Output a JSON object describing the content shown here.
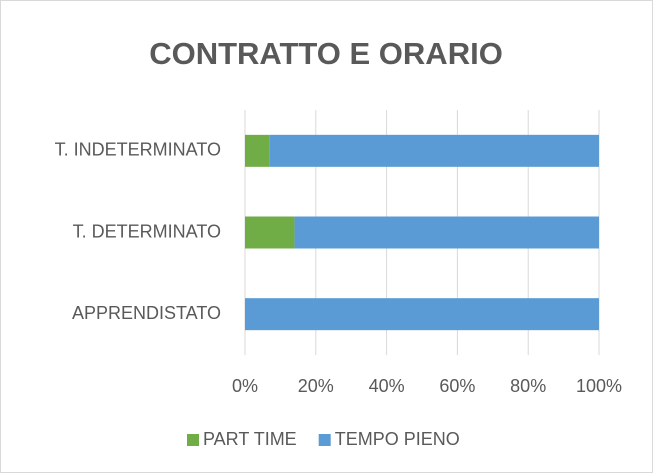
{
  "chart_data": {
    "type": "stacked_bar_horizontal",
    "title": "CONTRATTO E ORARIO",
    "categories": [
      "T. INDETERMINATO",
      "T. DETERMINATO",
      "APPRENDISTATO"
    ],
    "series": [
      {
        "name": "PART TIME",
        "color": "#70ad47",
        "values": [
          7,
          14,
          0
        ]
      },
      {
        "name": "TEMPO PIENO",
        "color": "#5b9bd5",
        "values": [
          93,
          86,
          100
        ]
      }
    ],
    "xlim": [
      0,
      100
    ],
    "xticks": [
      {
        "value": 0,
        "label": "0%"
      },
      {
        "value": 20,
        "label": "20%"
      },
      {
        "value": 40,
        "label": "40%"
      },
      {
        "value": 60,
        "label": "60%"
      },
      {
        "value": 80,
        "label": "80%"
      },
      {
        "value": 100,
        "label": "100%"
      }
    ],
    "grid": true,
    "legend": "bottom"
  }
}
